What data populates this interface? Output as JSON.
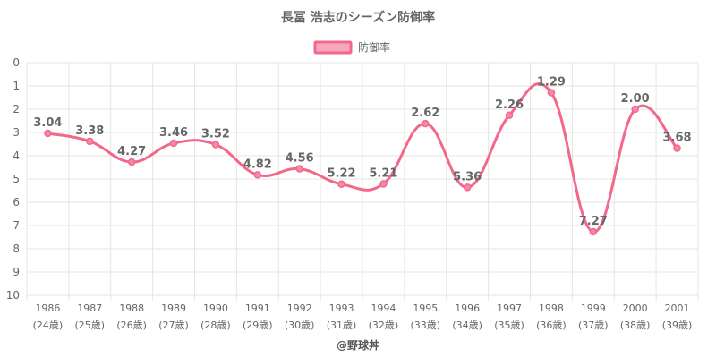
{
  "title": "長冨 浩志のシーズン防御率",
  "credit": "@野球丼",
  "colors": {
    "line": "#f3678a",
    "point_fill": "#f68aa6",
    "legend_fill": "#f7a8bd",
    "grid": "#e5e5e5",
    "text": "#666666"
  },
  "chart_data": {
    "type": "line",
    "title": "長冨 浩志のシーズン防御率",
    "legend": {
      "position": "top",
      "entries": [
        "防御率"
      ]
    },
    "x": [
      "1986",
      "1987",
      "1988",
      "1989",
      "1990",
      "1991",
      "1992",
      "1993",
      "1994",
      "1995",
      "1996",
      "1997",
      "1998",
      "1999",
      "2000",
      "2001"
    ],
    "x_sub": [
      "(24歳)",
      "(25歳)",
      "(26歳)",
      "(27歳)",
      "(28歳)",
      "(29歳)",
      "(30歳)",
      "(31歳)",
      "(32歳)",
      "(33歳)",
      "(34歳)",
      "(35歳)",
      "(36歳)",
      "(37歳)",
      "(38歳)",
      "(39歳)"
    ],
    "series": [
      {
        "name": "防御率",
        "values": [
          3.04,
          3.38,
          4.27,
          3.46,
          3.52,
          4.82,
          4.56,
          5.22,
          5.21,
          2.62,
          5.36,
          2.26,
          1.29,
          7.27,
          2.0,
          3.68
        ],
        "labels": [
          "3.04",
          "3.38",
          "4.27",
          "3.46",
          "3.52",
          "4.82",
          "4.56",
          "5.22",
          "5.21",
          "2.62",
          "5.36",
          "2.26",
          "1.29",
          "7.27",
          "2.00",
          "3.68"
        ]
      }
    ],
    "y_ticks": [
      "0",
      "1",
      "2",
      "3",
      "4",
      "5",
      "6",
      "7",
      "8",
      "9",
      "10"
    ],
    "ylim": [
      0,
      10
    ],
    "y_reversed": true,
    "grid": true
  }
}
